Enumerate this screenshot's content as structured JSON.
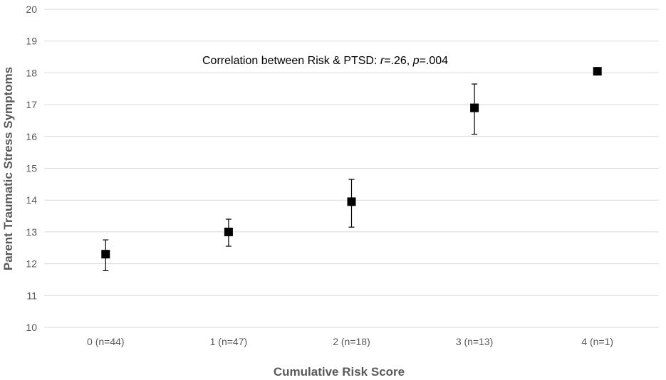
{
  "chart_data": {
    "type": "scatter",
    "title": "",
    "xlabel": "Cumulative Risk Score",
    "ylabel": "Parent Traumatic Stress Symptoms",
    "ylim": [
      10,
      20
    ],
    "yticks": [
      10,
      11,
      12,
      13,
      14,
      15,
      16,
      17,
      18,
      19,
      20
    ],
    "grid": true,
    "categories": [
      "0 (n=44)",
      "1 (n=47)",
      "2 (n=18)",
      "3 (n=13)",
      "4 (n=1)"
    ],
    "series": [
      {
        "name": "Mean",
        "marker": "square",
        "values": [
          12.3,
          13.0,
          13.95,
          16.9,
          18.05
        ],
        "error_low": [
          11.78,
          12.55,
          13.15,
          16.07,
          null
        ],
        "error_high": [
          12.75,
          13.4,
          14.65,
          17.65,
          null
        ]
      }
    ],
    "annotation": {
      "prefix": "Correlation between Risk & PTSD: ",
      "r_label": "r",
      "r_value": "=.26, ",
      "p_label": "p",
      "p_value": "=.004"
    },
    "colors": {
      "marker": "#000000",
      "grid": "#d9d9d9",
      "text": "#595959"
    }
  }
}
